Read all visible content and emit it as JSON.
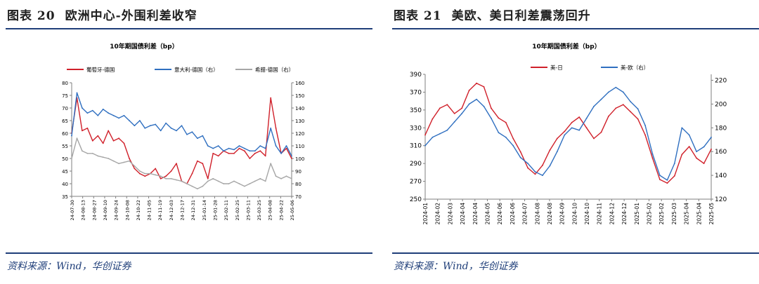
{
  "left": {
    "fig_no": "图表 20",
    "fig_title": "欧洲中心-外围利差收窄",
    "source": "资料来源：Wind，华创证券"
  },
  "right": {
    "fig_no": "图表 21",
    "fig_title": "美欧、美日利差震荡回升",
    "source": "资料来源：Wind，华创证券"
  },
  "chart_data": [
    {
      "type": "line",
      "title": "10年期国债利差（bp）",
      "legend_position": "top",
      "grid": false,
      "x_tick_labels": [
        "24-07-30",
        "24-08-13",
        "24-08-27",
        "24-09-10",
        "24-09-24",
        "24-10-08",
        "24-10-22",
        "24-11-05",
        "24-11-19",
        "24-12-03",
        "24-12-17",
        "24-12-31",
        "25-01-14",
        "25-01-28",
        "25-02-11",
        "25-02-25",
        "25-03-11",
        "25-03-25",
        "25-04-08",
        "25-04-22",
        "25-05-06"
      ],
      "y_left": {
        "ticks": [
          35,
          40,
          45,
          50,
          55,
          60,
          65,
          70,
          75,
          80
        ],
        "range": [
          35,
          80
        ]
      },
      "y_right": {
        "ticks": [
          70,
          80,
          90,
          100,
          110,
          120,
          130,
          140,
          150,
          160
        ],
        "range": [
          70,
          160
        ]
      },
      "series": [
        {
          "name": "葡萄牙-德国",
          "axis": "left",
          "color": "#d0202a",
          "values": [
            60,
            74,
            61,
            62,
            57,
            59,
            56,
            61,
            57,
            58,
            56,
            50,
            46,
            44,
            43,
            44,
            46,
            42,
            43,
            45,
            48,
            41,
            40,
            44,
            49,
            48,
            42,
            52,
            51,
            53,
            52,
            52,
            54,
            53,
            50,
            52,
            53,
            51,
            74,
            62,
            52,
            54,
            50
          ]
        },
        {
          "name": "意大利-德国（右）",
          "axis": "right",
          "color": "#2f6fc0",
          "values": [
            118,
            152,
            140,
            136,
            138,
            134,
            139,
            136,
            134,
            132,
            134,
            130,
            126,
            130,
            124,
            126,
            127,
            122,
            128,
            124,
            122,
            126,
            119,
            121,
            116,
            118,
            110,
            108,
            110,
            106,
            108,
            107,
            110,
            108,
            106,
            106,
            110,
            108,
            124,
            110,
            104,
            110,
            102
          ]
        },
        {
          "name": "希腊-德国（右）",
          "axis": "right",
          "color": "#a6a6a6",
          "values": [
            100,
            116,
            106,
            104,
            104,
            102,
            101,
            100,
            98,
            96,
            97,
            98,
            94,
            90,
            88,
            88,
            87,
            86,
            84,
            84,
            83,
            82,
            80,
            78,
            76,
            78,
            82,
            84,
            82,
            80,
            80,
            82,
            80,
            78,
            80,
            82,
            84,
            82,
            96,
            86,
            84,
            86,
            84
          ]
        }
      ]
    },
    {
      "type": "line",
      "title": "10年期国债利差（bp）",
      "legend_position": "top",
      "grid": false,
      "x_tick_labels": [
        "2024-01",
        "2024-02",
        "2024-03",
        "2024-04",
        "2024-04",
        "2024-05",
        "2024-06",
        "2024-06",
        "2024-07",
        "2024-08",
        "2024-08",
        "2024-09",
        "2024-10",
        "2024-10",
        "2024-11",
        "2024-12",
        "2024-12",
        "2025-01",
        "2025-02",
        "2025-02",
        "2025-03",
        "2025-04",
        "2025-04",
        "2025-05"
      ],
      "y_left": {
        "ticks": [
          250,
          270,
          290,
          310,
          330,
          350,
          370,
          390
        ],
        "range": [
          250,
          390
        ]
      },
      "y_right": {
        "ticks": [
          120,
          140,
          160,
          180,
          200,
          220
        ],
        "range": [
          120,
          225
        ]
      },
      "series": [
        {
          "name": "美-日",
          "axis": "left",
          "color": "#d0202a",
          "values": [
            322,
            340,
            352,
            356,
            346,
            352,
            372,
            380,
            376,
            352,
            341,
            336,
            318,
            303,
            285,
            278,
            288,
            305,
            318,
            326,
            336,
            342,
            330,
            318,
            325,
            343,
            352,
            356,
            348,
            340,
            322,
            296,
            272,
            268,
            276,
            300,
            309,
            296,
            290,
            306
          ]
        },
        {
          "name": "美-欧（右）",
          "axis": "right",
          "color": "#2f6fc0",
          "values": [
            165,
            172,
            175,
            178,
            185,
            192,
            200,
            204,
            198,
            188,
            176,
            172,
            165,
            155,
            150,
            143,
            140,
            148,
            160,
            174,
            180,
            178,
            188,
            198,
            204,
            210,
            214,
            210,
            202,
            196,
            182,
            158,
            140,
            136,
            150,
            180,
            174,
            160,
            164,
            172
          ]
        }
      ]
    }
  ]
}
